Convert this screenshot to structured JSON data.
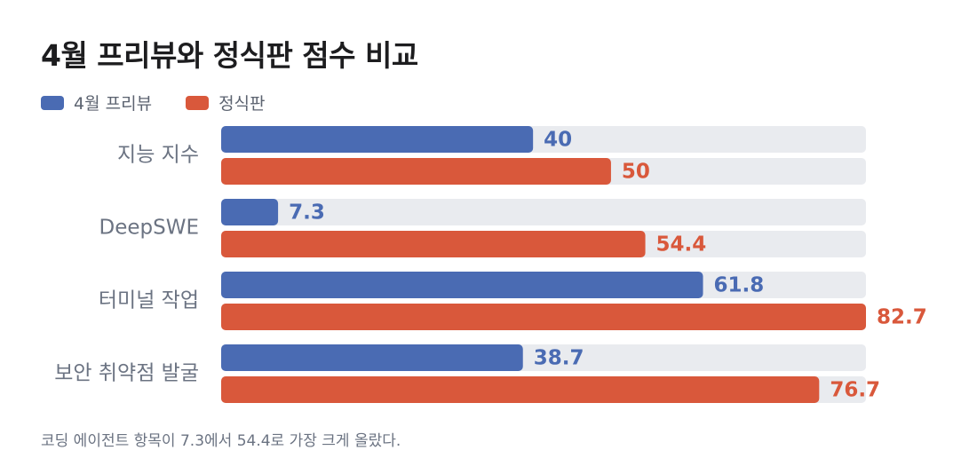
{
  "title": "4월 프리뷰와 정식판 점수 비교",
  "legend": [
    {
      "label": "4월 프리뷰",
      "color": "#4a6bb3"
    },
    {
      "label": "정식판",
      "color": "#d9583b"
    }
  ],
  "chart_data": {
    "type": "bar",
    "orientation": "horizontal",
    "categories": [
      "지능 지수",
      "DeepSWE",
      "터미널 작업",
      "보안 취약점 발굴"
    ],
    "series": [
      {
        "name": "4월 프리뷰",
        "color": "#4a6bb3",
        "values": [
          40,
          7.3,
          61.8,
          38.7
        ]
      },
      {
        "name": "정식판",
        "color": "#d9583b",
        "values": [
          50,
          54.4,
          82.7,
          76.7
        ]
      }
    ],
    "xlim": [
      0,
      82.7
    ],
    "legend_position": "top-left",
    "track_color": "#e9ebef",
    "data_labels": true
  },
  "footnote": "코딩 에이전트 항목이 7.3에서 54.4로 가장 크게 올랐다."
}
